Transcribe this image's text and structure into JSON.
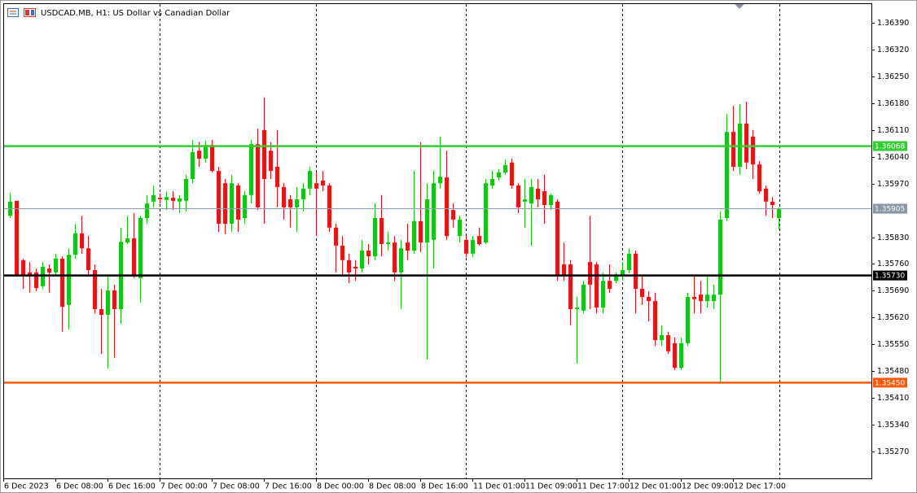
{
  "chart_data": {
    "type": "candlestick",
    "title": "USDCAD.MB, H1:  US Dollar vs Canadian Dollar",
    "up_color": "#19c219",
    "down_color": "#e8141c",
    "price_line_color": "#8c9cae",
    "price_tag_color": "#8896a6",
    "ylim": [
      1.352,
      1.36439
    ],
    "yticks": [
      {
        "value": 1.3639,
        "label": "1.36390"
      },
      {
        "value": 1.3632,
        "label": "1.36320"
      },
      {
        "value": 1.3625,
        "label": "1.36250"
      },
      {
        "value": 1.3618,
        "label": "1.36180"
      },
      {
        "value": 1.3611,
        "label": "1.36110"
      },
      {
        "value": 1.3604,
        "label": "1.36040"
      },
      {
        "value": 1.3597,
        "label": "1.35970"
      },
      {
        "value": 1.3583,
        "label": "1.35830"
      },
      {
        "value": 1.3576,
        "label": "1.35760"
      },
      {
        "value": 1.3569,
        "label": "1.35690"
      },
      {
        "value": 1.3562,
        "label": "1.35620"
      },
      {
        "value": 1.3555,
        "label": "1.35550"
      },
      {
        "value": 1.3548,
        "label": "1.35480"
      },
      {
        "value": 1.3541,
        "label": "1.35410"
      },
      {
        "value": 1.3534,
        "label": "1.35340"
      },
      {
        "value": 1.3527,
        "label": "1.35270"
      }
    ],
    "levels": [
      {
        "value": 1.36068,
        "color": "#33cc33"
      },
      {
        "value": 1.3573,
        "label": "1.35730",
        "color": "#000000"
      },
      {
        "value": 1.3545,
        "label": "1.35450",
        "color": "#ff5a0a"
      }
    ],
    "categories": [
      "6 Dec 2023",
      null,
      null,
      null,
      null,
      null,
      null,
      null,
      "6 Dec 08:00",
      null,
      null,
      null,
      null,
      null,
      null,
      null,
      "6 Dec 16:00",
      null,
      null,
      null,
      null,
      null,
      null,
      null,
      "7 Dec 00:00",
      null,
      null,
      null,
      null,
      null,
      null,
      null,
      "7 Dec 08:00",
      null,
      null,
      null,
      null,
      null,
      null,
      null,
      "7 Dec 16:00",
      null,
      null,
      null,
      null,
      null,
      null,
      null,
      "8 Dec 00:00",
      null,
      null,
      null,
      null,
      null,
      null,
      null,
      "8 Dec 08:00",
      null,
      null,
      null,
      null,
      null,
      null,
      null,
      "8 Dec 16:00",
      null,
      null,
      null,
      null,
      null,
      null,
      null,
      "11 Dec 01:00",
      null,
      null,
      null,
      null,
      null,
      null,
      null,
      "11 Dec 09:00",
      null,
      null,
      null,
      null,
      null,
      null,
      null,
      "11 Dec 17:00",
      null,
      null,
      null,
      null,
      null,
      null,
      null,
      "12 Dec 01:00",
      null,
      null,
      null,
      null,
      null,
      null,
      null,
      "12 Dec 09:00",
      null,
      null,
      null,
      null,
      null,
      null,
      null,
      "12 Dec 17:00",
      null,
      null,
      null,
      null,
      null,
      null,
      null
    ],
    "open": [
      null,
      1.35886,
      1.35925,
      1.3577,
      1.35738,
      1.35738,
      1.35702,
      1.35748,
      1.35738,
      1.35774,
      1.35653,
      1.35784,
      1.3584,
      1.35801,
      1.35744,
      1.35642,
      1.35627,
      1.35691,
      1.35642,
      1.35816,
      1.35827,
      1.35723,
      1.3588,
      1.35923,
      1.35933,
      1.35927,
      1.35933,
      1.35923,
      1.35925,
      1.35982,
      1.36056,
      1.36035,
      1.36071,
      1.36003,
      1.35971,
      1.35865,
      1.35965,
      1.3588,
      1.3594,
      1.36073,
      1.3611,
      1.36056,
      1.36014,
      1.35961,
      1.35929,
      1.35908,
      1.35929,
      1.35957,
      1.35971,
      1.35978,
      1.35965,
      1.35855,
      1.35808,
      1.3577,
      1.35753,
      1.35748,
      1.35795,
      1.3578,
      1.3588,
      1.35812,
      1.35816,
      1.35738,
      1.35816,
      1.35795,
      1.35872,
      1.35816,
      1.35823,
      1.35971,
      1.35986,
      1.35901,
      1.35833,
      1.35823,
      1.35787,
      1.35833,
      1.35816,
      1.35965,
      1.35986,
      1.35999,
      1.36025,
      1.35965,
      1.35923,
      1.35918,
      1.35957,
      1.3595,
      1.35914,
      1.35923,
      1.35759,
      1.35759,
      1.35642,
      1.35638,
      1.35765,
      1.35759,
      1.35646,
      1.35716,
      1.35716,
      1.35731,
      1.35744,
      1.35787,
      1.35695,
      1.35674,
      1.35663,
      1.35561,
      1.35574,
      1.35553,
      1.35489,
      1.35553,
      1.35674,
      1.3568,
      1.35663,
      1.35663,
      1.3568,
      1.3588,
      1.36105,
      1.36014,
      1.36127,
      1.36093,
      1.3602,
      1.35957,
      1.35923,
      1.3588
    ],
    "high": [
      null,
      1.35946,
      1.35925,
      1.35774,
      1.35765,
      1.35748,
      1.35765,
      1.35759,
      1.35787,
      1.3578,
      1.35801,
      1.35865,
      1.35886,
      1.35833,
      1.35759,
      1.35695,
      1.35727,
      1.35706,
      1.35855,
      1.35886,
      1.35893,
      1.35886,
      1.3594,
      1.35965,
      1.35944,
      1.3595,
      1.3595,
      1.3594,
      1.35993,
      1.36084,
      1.36078,
      1.36082,
      1.36084,
      1.36014,
      1.35982,
      1.35993,
      1.35971,
      1.3595,
      1.36084,
      1.36114,
      1.36195,
      1.36078,
      1.3611,
      1.35971,
      1.3594,
      1.35961,
      1.35971,
      1.36014,
      1.35999,
      1.36003,
      1.35971,
      1.35865,
      1.35833,
      1.35787,
      1.3577,
      1.35823,
      1.35812,
      1.35918,
      1.3594,
      1.35844,
      1.35833,
      1.35823,
      1.35865,
      1.36003,
      1.36078,
      1.35971,
      1.36003,
      1.36093,
      1.36056,
      1.35918,
      1.35886,
      1.35833,
      1.35833,
      1.35855,
      1.35982,
      1.36003,
      1.36008,
      1.36033,
      1.36035,
      1.35971,
      1.35982,
      1.35982,
      1.35982,
      1.35993,
      1.35944,
      1.35929,
      1.35816,
      1.3577,
      1.35674,
      1.35716,
      1.35886,
      1.35765,
      1.35738,
      1.35759,
      1.35738,
      1.35765,
      1.35801,
      1.35795,
      1.35727,
      1.35689,
      1.35685,
      1.356,
      1.35583,
      1.35568,
      1.35568,
      1.35685,
      1.35727,
      1.35716,
      1.35731,
      1.35706,
      1.35897,
      1.36152,
      1.36173,
      1.36178,
      1.36184,
      1.3611,
      1.36029,
      1.35965,
      1.35935,
      1.35908
    ],
    "low": [
      null,
      1.3588,
      1.35727,
      1.35695,
      1.35685,
      1.35689,
      1.35695,
      1.35685,
      1.35727,
      1.35583,
      1.35589,
      1.35774,
      1.35787,
      1.35727,
      1.35631,
      1.35525,
      1.35487,
      1.35515,
      1.35604,
      1.35812,
      1.35723,
      1.35659,
      1.35865,
      1.35908,
      1.35918,
      1.35901,
      1.35901,
      1.35893,
      1.35897,
      1.35971,
      1.36014,
      1.36025,
      1.35999,
      1.35844,
      1.35838,
      1.35844,
      1.35844,
      1.35865,
      1.35918,
      1.35901,
      1.35865,
      1.35982,
      1.35908,
      1.35876,
      1.35855,
      1.35844,
      1.35897,
      1.3594,
      1.35833,
      1.3595,
      1.35844,
      1.35738,
      1.35727,
      1.3571,
      1.35716,
      1.35738,
      1.35759,
      1.3577,
      1.3578,
      1.35795,
      1.35716,
      1.35642,
      1.3577,
      1.35787,
      1.35791,
      1.3551,
      1.35748,
      1.35957,
      1.35823,
      1.35855,
      1.35816,
      1.35778,
      1.35778,
      1.35808,
      1.35812,
      1.35957,
      1.35978,
      1.35993,
      1.35957,
      1.35893,
      1.35855,
      1.35808,
      1.35908,
      1.35865,
      1.35901,
      1.35716,
      1.35716,
      1.356,
      1.355,
      1.35631,
      1.35642,
      1.35631,
      1.35631,
      1.35685,
      1.3571,
      1.35716,
      1.35736,
      1.35631,
      1.35653,
      1.3561,
      1.35546,
      1.35546,
      1.35525,
      1.35483,
      1.35483,
      1.35546,
      1.35631,
      1.35631,
      1.35646,
      1.35642,
      1.35447,
      1.35872,
      1.36003,
      1.35993,
      1.36008,
      1.35982,
      1.35944,
      1.35886,
      1.3588,
      1.3585
    ],
    "close": [
      null,
      1.35923,
      1.35731,
      1.35727,
      1.35727,
      1.35697,
      1.35753,
      1.35738,
      1.35774,
      1.35648,
      1.35784,
      1.3584,
      1.35801,
      1.35744,
      1.35642,
      1.35627,
      1.35691,
      1.35642,
      1.35818,
      1.35827,
      1.35727,
      1.3588,
      1.35918,
      1.3594,
      1.35929,
      1.35935,
      1.35925,
      1.35931,
      1.35982,
      1.36052,
      1.36035,
      1.36071,
      1.36003,
      1.35865,
      1.35865,
      1.35971,
      1.35876,
      1.3594,
      1.36073,
      1.35908,
      1.35982,
      1.36003,
      1.35961,
      1.35908,
      1.35908,
      1.35929,
      1.35957,
      1.36003,
      1.35957,
      1.35965,
      1.35855,
      1.35808,
      1.3577,
      1.35738,
      1.35748,
      1.35795,
      1.3578,
      1.3588,
      1.35812,
      1.35816,
      1.35738,
      1.35801,
      1.35795,
      1.35872,
      1.35816,
      1.35929,
      1.35971,
      1.35988,
      1.35833,
      1.35876,
      1.35876,
      1.35787,
      1.35823,
      1.35812,
      1.35971,
      1.35982,
      1.35999,
      1.36018,
      1.35965,
      1.35908,
      1.35929,
      1.35961,
      1.35929,
      1.35914,
      1.3594,
      1.35727,
      1.35731,
      1.35642,
      1.35646,
      1.35706,
      1.35706,
      1.35646,
      1.35716,
      1.35695,
      1.35727,
      1.35744,
      1.35787,
      1.35695,
      1.35674,
      1.35663,
      1.35561,
      1.35574,
      1.35532,
      1.35489,
      1.35553,
      1.35674,
      1.35668,
      1.35663,
      1.3568,
      1.3568,
      1.35876,
      1.36105,
      1.36014,
      1.36127,
      1.36025,
      1.3602,
      1.3595,
      1.35923,
      1.35914,
      1.35905
    ]
  }
}
